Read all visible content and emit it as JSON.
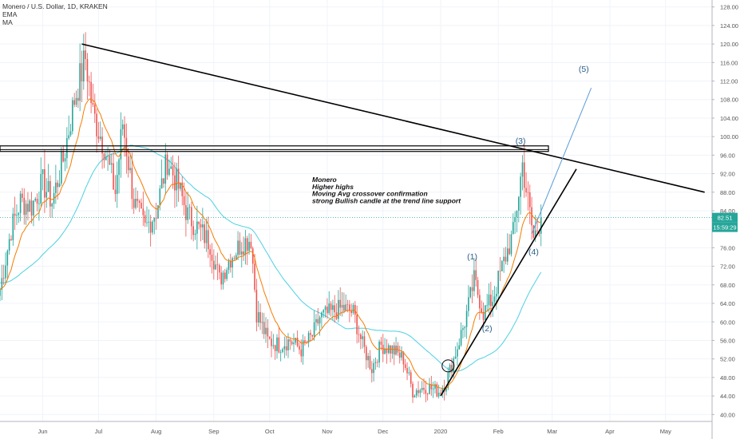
{
  "legend": {
    "symbol_line": "Monero / U.S. Dollar, 1D, KRAKEN",
    "ema_label": "EMA",
    "ma_label": "MA"
  },
  "price_badges": {
    "last_price": "82.51",
    "countdown": "15:59:29"
  },
  "annotation": {
    "lines": [
      "Monero",
      "Higher highs",
      "Moving Avg crossover confirmation",
      "strong Bullish candle at the trend line support"
    ]
  },
  "wave_labels": [
    "(1)",
    "(2)",
    "(3)",
    "(4)",
    "(5)"
  ],
  "colors": {
    "up_candle": "#26a69a",
    "down_candle": "#ef5350",
    "ema": "#f57c00",
    "ma": "#4dd0e1",
    "trendline": "#000000",
    "projection": "#5b9bd5",
    "wave_label": "#2a5f8a",
    "price_badge": "#26a69a"
  },
  "chart_data": {
    "type": "candlestick",
    "symbol": "Monero / U.S. Dollar",
    "interval": "1D",
    "exchange": "KRAKEN",
    "x_type": "date",
    "x_ticks": [
      "Jun",
      "Jul",
      "Aug",
      "Sep",
      "Oct",
      "Nov",
      "Dec",
      "2020",
      "Feb",
      "Mar",
      "Apr",
      "May"
    ],
    "y_ticks": [
      40.0,
      44.0,
      48.0,
      52.0,
      56.0,
      60.0,
      64.0,
      68.0,
      72.0,
      76.0,
      80.0,
      84.0,
      88.0,
      92.0,
      96.0,
      100.0,
      104.0,
      108.0,
      112.0,
      116.0,
      120.0,
      124.0,
      128.0
    ],
    "y_range": [
      38.5,
      129.5
    ],
    "x_range": [
      "2019-05-09",
      "2020-05-26"
    ],
    "last_price": 82.51,
    "price_anchors": [
      [
        "2019-05-09",
        67
      ],
      [
        "2019-05-15",
        80
      ],
      [
        "2019-05-20",
        86
      ],
      [
        "2019-05-26",
        85
      ],
      [
        "2019-06-01",
        90
      ],
      [
        "2019-06-06",
        86
      ],
      [
        "2019-06-12",
        95
      ],
      [
        "2019-06-18",
        108
      ],
      [
        "2019-06-24",
        117
      ],
      [
        "2019-06-28",
        105
      ],
      [
        "2019-07-04",
        98
      ],
      [
        "2019-07-10",
        88
      ],
      [
        "2019-07-14",
        103
      ],
      [
        "2019-07-20",
        86
      ],
      [
        "2019-07-26",
        80
      ],
      [
        "2019-08-01",
        84
      ],
      [
        "2019-08-07",
        95
      ],
      [
        "2019-08-13",
        89
      ],
      [
        "2019-08-18",
        83
      ],
      [
        "2019-08-24",
        80
      ],
      [
        "2019-08-30",
        77
      ],
      [
        "2019-09-04",
        69
      ],
      [
        "2019-09-10",
        74
      ],
      [
        "2019-09-16",
        77
      ],
      [
        "2019-09-21",
        78
      ],
      [
        "2019-09-24",
        62
      ],
      [
        "2019-09-30",
        56
      ],
      [
        "2019-10-06",
        55
      ],
      [
        "2019-10-12",
        56
      ],
      [
        "2019-10-18",
        54
      ],
      [
        "2019-10-24",
        57
      ],
      [
        "2019-10-28",
        61
      ],
      [
        "2019-11-03",
        62
      ],
      [
        "2019-11-09",
        63
      ],
      [
        "2019-11-15",
        62
      ],
      [
        "2019-11-20",
        55
      ],
      [
        "2019-11-25",
        50
      ],
      [
        "2019-11-30",
        55
      ],
      [
        "2019-12-06",
        54
      ],
      [
        "2019-12-12",
        52
      ],
      [
        "2019-12-17",
        45
      ],
      [
        "2019-12-24",
        46
      ],
      [
        "2019-12-31",
        45
      ],
      [
        "2020-01-04",
        47
      ],
      [
        "2020-01-08",
        52
      ],
      [
        "2020-01-14",
        60
      ],
      [
        "2020-01-19",
        69
      ],
      [
        "2020-01-24",
        62
      ],
      [
        "2020-01-29",
        65
      ],
      [
        "2020-02-04",
        73
      ],
      [
        "2020-02-09",
        79
      ],
      [
        "2020-02-12",
        88
      ],
      [
        "2020-02-14",
        94
      ],
      [
        "2020-02-17",
        86
      ],
      [
        "2020-02-20",
        78
      ],
      [
        "2020-02-24",
        82.51
      ]
    ],
    "lines": [
      {
        "kind": "descending-trendline",
        "from": [
          "2019-06-22",
          120.0
        ],
        "to": [
          "2020-05-22",
          88.0
        ]
      },
      {
        "kind": "ascending-trendline",
        "from": [
          "2020-01-01",
          44.0
        ],
        "to": [
          "2020-03-14",
          93.0
        ]
      },
      {
        "kind": "resistance-zone",
        "from": [
          "2019-05-09",
          98.0
        ],
        "to": [
          "2020-02-28",
          96.8
        ]
      },
      {
        "kind": "elliott-projection",
        "from": [
          "2020-02-19",
          79.0
        ],
        "to": [
          "2020-03-22",
          110.5
        ]
      }
    ],
    "wave_points": [
      {
        "label": "(1)",
        "x": "2020-01-18",
        "y": 73.5
      },
      {
        "label": "(2)",
        "x": "2020-01-26",
        "y": 58.0
      },
      {
        "label": "(3)",
        "x": "2020-02-13",
        "y": 98.5
      },
      {
        "label": "(4)",
        "x": "2020-02-20",
        "y": 74.5
      },
      {
        "label": "(5)",
        "x": "2020-03-18",
        "y": 114.0
      }
    ],
    "highlight_circle": {
      "x": "2020-01-05",
      "y": 50.5
    }
  }
}
